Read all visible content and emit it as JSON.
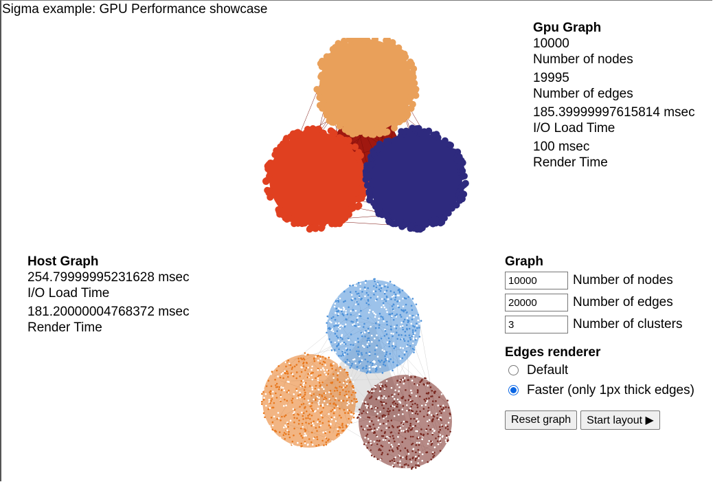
{
  "title": "Sigma example: GPU Performance showcase",
  "gpu": {
    "heading": "Gpu Graph",
    "nodes_value": "10000",
    "nodes_label": "Number of nodes",
    "edges_value": "19995",
    "edges_label": "Number of edges",
    "load_value": "185.39999997615814 msec",
    "load_label": "I/O Load Time",
    "render_value": "100 msec",
    "render_label": "Render Time",
    "colors": [
      "#e9a05a",
      "#e04020",
      "#2e2a7e"
    ],
    "edge_color": "#a01810"
  },
  "host": {
    "heading": "Host Graph",
    "load_value": "254.79999995231628 msec",
    "load_label": "I/O Load Time",
    "render_value": "181.20000004768372 msec",
    "render_label": "Render Time",
    "colors": [
      "#4a90d9",
      "#e8781e",
      "#7a2a22"
    ],
    "edge_color": "#e4e4e4"
  },
  "form": {
    "heading": "Graph",
    "nodes": {
      "value": "10000",
      "label": "Number of nodes"
    },
    "edges": {
      "value": "20000",
      "label": "Number of edges"
    },
    "clusters": {
      "value": "3",
      "label": "Number of clusters"
    },
    "renderer_heading": "Edges renderer",
    "renderer_options": [
      {
        "label": "Default",
        "checked": false
      },
      {
        "label": "Faster (only 1px thick edges)",
        "checked": true
      }
    ],
    "reset_label": "Reset graph",
    "start_label": "Start layout ▶"
  }
}
